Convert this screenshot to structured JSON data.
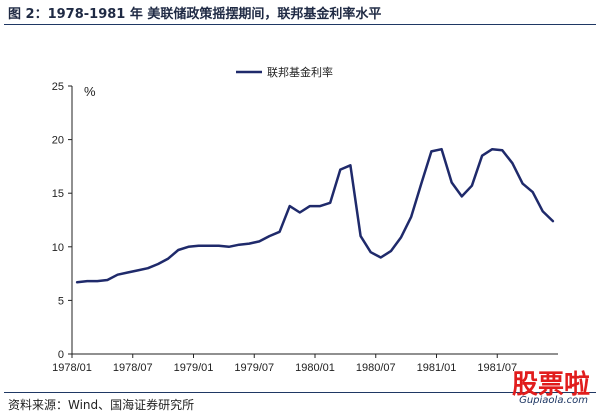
{
  "header": {
    "title": "图 2：1978-1981 年  美联储政策摇摆期间，联邦基金利率水平"
  },
  "footer": {
    "source": "资料来源：Wind、国海证券研究所"
  },
  "watermark": {
    "main": "股票啦",
    "sub": "Gupiaola.com"
  },
  "chart_data": {
    "type": "line",
    "title": "",
    "unit_label": "%",
    "xlabel": "",
    "ylabel": "",
    "ylim": [
      0,
      25
    ],
    "yticks": [
      0,
      5,
      10,
      15,
      20,
      25
    ],
    "xticks": [
      "1978/01",
      "1978/07",
      "1979/01",
      "1979/07",
      "1980/01",
      "1980/07",
      "1981/01",
      "1981/07"
    ],
    "grid": false,
    "legend_position": "top",
    "series": [
      {
        "name": "联邦基金利率",
        "color": "#1f2a6b",
        "x": [
          "1978/01",
          "1978/02",
          "1978/03",
          "1978/04",
          "1978/05",
          "1978/06",
          "1978/07",
          "1978/08",
          "1978/09",
          "1978/10",
          "1978/11",
          "1978/12",
          "1979/01",
          "1979/02",
          "1979/03",
          "1979/04",
          "1979/05",
          "1979/06",
          "1979/07",
          "1979/08",
          "1979/09",
          "1979/10",
          "1979/11",
          "1979/12",
          "1980/01",
          "1980/02",
          "1980/03",
          "1980/04",
          "1980/05",
          "1980/06",
          "1980/07",
          "1980/08",
          "1980/09",
          "1980/10",
          "1980/11",
          "1980/12",
          "1981/01",
          "1981/02",
          "1981/03",
          "1981/04",
          "1981/05",
          "1981/06",
          "1981/07",
          "1981/08",
          "1981/09",
          "1981/10",
          "1981/11",
          "1981/12"
        ],
        "values": [
          6.7,
          6.8,
          6.8,
          6.9,
          7.4,
          7.6,
          7.8,
          8.0,
          8.4,
          8.9,
          9.7,
          10.0,
          10.1,
          10.1,
          10.1,
          10.0,
          10.2,
          10.3,
          10.5,
          11.0,
          11.4,
          13.8,
          13.2,
          13.8,
          13.8,
          14.1,
          17.2,
          17.6,
          11.0,
          9.5,
          9.0,
          9.6,
          10.9,
          12.8,
          15.9,
          18.9,
          19.1,
          16.0,
          14.7,
          15.7,
          18.5,
          19.1,
          19.0,
          17.8,
          15.9,
          15.1,
          13.3,
          12.4
        ]
      }
    ]
  }
}
